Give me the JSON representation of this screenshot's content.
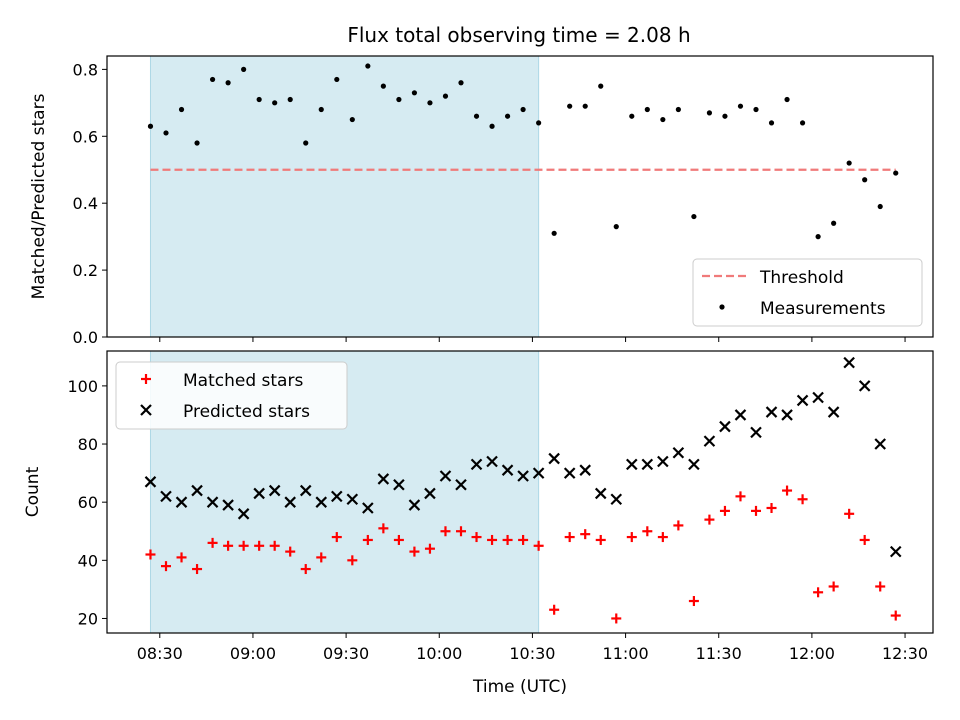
{
  "chart_data": [
    {
      "type": "scatter",
      "title": "Flux total observing time = 2.08 h",
      "xlabel": "",
      "ylabel": "Matched/Predicted stars",
      "ylim": [
        0,
        0.84
      ],
      "yticks": [
        "0.0",
        "0.2",
        "0.4",
        "0.6",
        "0.8"
      ],
      "highlight_span": [
        "08:27",
        "10:32"
      ],
      "legend_position": "lower-right",
      "threshold": {
        "name": "Threshold",
        "value": 0.5,
        "x_range": [
          "08:27",
          "12:27"
        ],
        "color": "#f07a7a"
      },
      "series": [
        {
          "name": "Measurements",
          "color": "#000000",
          "points": [
            [
              "08:27",
              0.63
            ],
            [
              "08:32",
              0.61
            ],
            [
              "08:37",
              0.68
            ],
            [
              "08:42",
              0.58
            ],
            [
              "08:47",
              0.77
            ],
            [
              "08:52",
              0.76
            ],
            [
              "08:57",
              0.8
            ],
            [
              "09:02",
              0.71
            ],
            [
              "09:07",
              0.7
            ],
            [
              "09:12",
              0.71
            ],
            [
              "09:17",
              0.58
            ],
            [
              "09:22",
              0.68
            ],
            [
              "09:27",
              0.77
            ],
            [
              "09:32",
              0.65
            ],
            [
              "09:37",
              0.81
            ],
            [
              "09:42",
              0.75
            ],
            [
              "09:47",
              0.71
            ],
            [
              "09:52",
              0.73
            ],
            [
              "09:57",
              0.7
            ],
            [
              "10:02",
              0.72
            ],
            [
              "10:07",
              0.76
            ],
            [
              "10:12",
              0.66
            ],
            [
              "10:17",
              0.63
            ],
            [
              "10:22",
              0.66
            ],
            [
              "10:27",
              0.68
            ],
            [
              "10:32",
              0.64
            ],
            [
              "10:37",
              0.31
            ],
            [
              "10:42",
              0.69
            ],
            [
              "10:47",
              0.69
            ],
            [
              "10:52",
              0.75
            ],
            [
              "10:57",
              0.33
            ],
            [
              "11:02",
              0.66
            ],
            [
              "11:07",
              0.68
            ],
            [
              "11:12",
              0.65
            ],
            [
              "11:17",
              0.68
            ],
            [
              "11:22",
              0.36
            ],
            [
              "11:27",
              0.67
            ],
            [
              "11:32",
              0.66
            ],
            [
              "11:37",
              0.69
            ],
            [
              "11:42",
              0.68
            ],
            [
              "11:47",
              0.64
            ],
            [
              "11:52",
              0.71
            ],
            [
              "11:57",
              0.64
            ],
            [
              "12:02",
              0.3
            ],
            [
              "12:07",
              0.34
            ],
            [
              "12:12",
              0.52
            ],
            [
              "12:17",
              0.47
            ],
            [
              "12:22",
              0.39
            ],
            [
              "12:27",
              0.49
            ]
          ]
        }
      ]
    },
    {
      "type": "scatter",
      "xlabel": "Time (UTC)",
      "ylabel": "Count",
      "ylim": [
        15,
        112
      ],
      "yticks": [
        "20",
        "40",
        "60",
        "80",
        "100"
      ],
      "xticks": [
        "08:30",
        "09:00",
        "09:30",
        "10:00",
        "10:30",
        "11:00",
        "11:30",
        "12:00",
        "12:30"
      ],
      "xlim": [
        "08:13",
        "12:39"
      ],
      "highlight_span": [
        "08:27",
        "10:32"
      ],
      "legend_position": "upper-left",
      "series": [
        {
          "name": "Matched stars",
          "marker": "plus",
          "color": "#ff0000",
          "points": [
            [
              "08:27",
              42
            ],
            [
              "08:32",
              38
            ],
            [
              "08:37",
              41
            ],
            [
              "08:42",
              37
            ],
            [
              "08:47",
              46
            ],
            [
              "08:52",
              45
            ],
            [
              "08:57",
              45
            ],
            [
              "09:02",
              45
            ],
            [
              "09:07",
              45
            ],
            [
              "09:12",
              43
            ],
            [
              "09:17",
              37
            ],
            [
              "09:22",
              41
            ],
            [
              "09:27",
              48
            ],
            [
              "09:32",
              40
            ],
            [
              "09:37",
              47
            ],
            [
              "09:42",
              51
            ],
            [
              "09:47",
              47
            ],
            [
              "09:52",
              43
            ],
            [
              "09:57",
              44
            ],
            [
              "10:02",
              50
            ],
            [
              "10:07",
              50
            ],
            [
              "10:12",
              48
            ],
            [
              "10:17",
              47
            ],
            [
              "10:22",
              47
            ],
            [
              "10:27",
              47
            ],
            [
              "10:32",
              45
            ],
            [
              "10:37",
              23
            ],
            [
              "10:42",
              48
            ],
            [
              "10:47",
              49
            ],
            [
              "10:52",
              47
            ],
            [
              "10:57",
              20
            ],
            [
              "11:02",
              48
            ],
            [
              "11:07",
              50
            ],
            [
              "11:12",
              48
            ],
            [
              "11:17",
              52
            ],
            [
              "11:22",
              26
            ],
            [
              "11:27",
              54
            ],
            [
              "11:32",
              57
            ],
            [
              "11:37",
              62
            ],
            [
              "11:42",
              57
            ],
            [
              "11:47",
              58
            ],
            [
              "11:52",
              64
            ],
            [
              "11:57",
              61
            ],
            [
              "12:02",
              29
            ],
            [
              "12:07",
              31
            ],
            [
              "12:12",
              56
            ],
            [
              "12:17",
              47
            ],
            [
              "12:22",
              31
            ],
            [
              "12:27",
              21
            ]
          ]
        },
        {
          "name": "Predicted stars",
          "marker": "x",
          "color": "#000000",
          "points": [
            [
              "08:27",
              67
            ],
            [
              "08:32",
              62
            ],
            [
              "08:37",
              60
            ],
            [
              "08:42",
              64
            ],
            [
              "08:47",
              60
            ],
            [
              "08:52",
              59
            ],
            [
              "08:57",
              56
            ],
            [
              "09:02",
              63
            ],
            [
              "09:07",
              64
            ],
            [
              "09:12",
              60
            ],
            [
              "09:17",
              64
            ],
            [
              "09:22",
              60
            ],
            [
              "09:27",
              62
            ],
            [
              "09:32",
              61
            ],
            [
              "09:37",
              58
            ],
            [
              "09:42",
              68
            ],
            [
              "09:47",
              66
            ],
            [
              "09:52",
              59
            ],
            [
              "09:57",
              63
            ],
            [
              "10:02",
              69
            ],
            [
              "10:07",
              66
            ],
            [
              "10:12",
              73
            ],
            [
              "10:17",
              74
            ],
            [
              "10:22",
              71
            ],
            [
              "10:27",
              69
            ],
            [
              "10:32",
              70
            ],
            [
              "10:37",
              75
            ],
            [
              "10:42",
              70
            ],
            [
              "10:47",
              71
            ],
            [
              "10:52",
              63
            ],
            [
              "10:57",
              61
            ],
            [
              "11:02",
              73
            ],
            [
              "11:07",
              73
            ],
            [
              "11:12",
              74
            ],
            [
              "11:17",
              77
            ],
            [
              "11:22",
              73
            ],
            [
              "11:27",
              81
            ],
            [
              "11:32",
              86
            ],
            [
              "11:37",
              90
            ],
            [
              "11:42",
              84
            ],
            [
              "11:47",
              91
            ],
            [
              "11:52",
              90
            ],
            [
              "11:57",
              95
            ],
            [
              "12:02",
              96
            ],
            [
              "12:07",
              91
            ],
            [
              "12:12",
              108
            ],
            [
              "12:17",
              100
            ],
            [
              "12:22",
              80
            ],
            [
              "12:27",
              43
            ]
          ]
        }
      ]
    }
  ]
}
